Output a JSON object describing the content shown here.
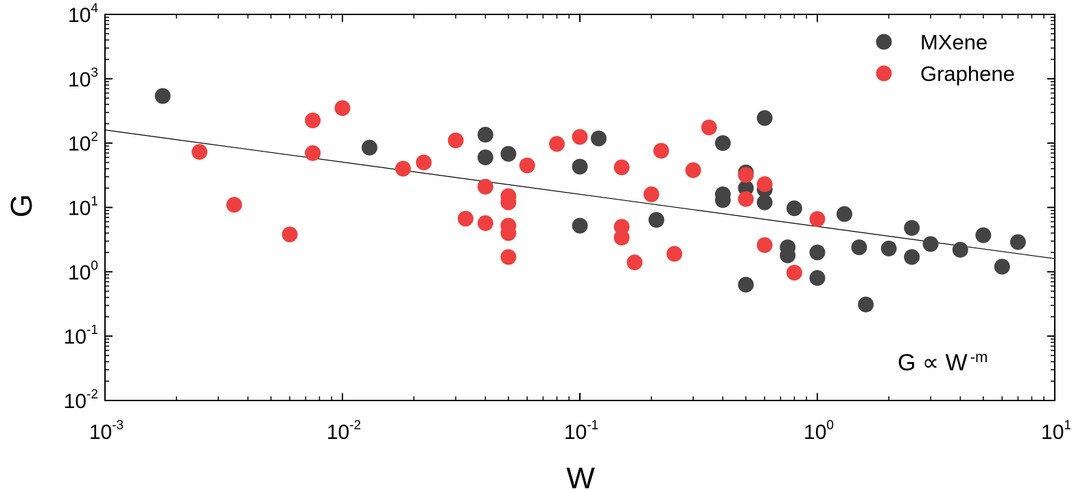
{
  "chart_data": {
    "type": "scatter",
    "xlabel": "W",
    "ylabel": "G",
    "xscale": "log",
    "yscale": "log",
    "xlim": [
      0.001,
      10
    ],
    "ylim": [
      0.01,
      10000
    ],
    "xticks": [
      {
        "value": 0.001,
        "base": "10",
        "exp": "-3"
      },
      {
        "value": 0.01,
        "base": "10",
        "exp": "-2"
      },
      {
        "value": 0.1,
        "base": "10",
        "exp": "-1"
      },
      {
        "value": 1,
        "base": "10",
        "exp": "0"
      },
      {
        "value": 10,
        "base": "10",
        "exp": "1"
      }
    ],
    "yticks": [
      {
        "value": 0.01,
        "base": "10",
        "exp": "-2"
      },
      {
        "value": 0.1,
        "base": "10",
        "exp": "-1"
      },
      {
        "value": 1,
        "base": "10",
        "exp": "0"
      },
      {
        "value": 10,
        "base": "10",
        "exp": "1"
      },
      {
        "value": 100,
        "base": "10",
        "exp": "2"
      },
      {
        "value": 1000,
        "base": "10",
        "exp": "3"
      },
      {
        "value": 10000,
        "base": "10",
        "exp": "4"
      }
    ],
    "legend_position": "top-right",
    "grid": false,
    "series": [
      {
        "name": "MXene",
        "color": "#444444",
        "points": [
          [
            0.00175,
            540
          ],
          [
            0.013,
            85
          ],
          [
            0.04,
            135
          ],
          [
            0.04,
            60
          ],
          [
            0.05,
            68
          ],
          [
            0.1,
            43
          ],
          [
            0.1,
            5.2
          ],
          [
            0.12,
            118
          ],
          [
            0.21,
            6.4
          ],
          [
            0.4,
            100
          ],
          [
            0.4,
            16
          ],
          [
            0.4,
            13
          ],
          [
            0.5,
            35
          ],
          [
            0.5,
            20
          ],
          [
            0.5,
            0.63
          ],
          [
            0.6,
            245
          ],
          [
            0.6,
            19
          ],
          [
            0.6,
            12
          ],
          [
            0.75,
            2.4
          ],
          [
            0.75,
            1.8
          ],
          [
            0.8,
            9.7
          ],
          [
            1.0,
            2.0
          ],
          [
            1.0,
            0.8
          ],
          [
            1.3,
            7.9
          ],
          [
            1.5,
            2.4
          ],
          [
            1.6,
            0.31
          ],
          [
            2.0,
            2.3
          ],
          [
            2.5,
            4.8
          ],
          [
            2.5,
            1.7
          ],
          [
            3.0,
            2.7
          ],
          [
            4.0,
            2.2
          ],
          [
            5.0,
            3.7
          ],
          [
            6.0,
            1.2
          ],
          [
            7.0,
            2.9
          ]
        ]
      },
      {
        "name": "Graphene",
        "color": "#ee4040",
        "points": [
          [
            0.0025,
            73
          ],
          [
            0.0035,
            11
          ],
          [
            0.006,
            3.8
          ],
          [
            0.0075,
            225
          ],
          [
            0.0075,
            70
          ],
          [
            0.01,
            350
          ],
          [
            0.018,
            40
          ],
          [
            0.022,
            50
          ],
          [
            0.03,
            110
          ],
          [
            0.033,
            6.7
          ],
          [
            0.04,
            21
          ],
          [
            0.04,
            5.7
          ],
          [
            0.05,
            15
          ],
          [
            0.05,
            12
          ],
          [
            0.05,
            5.2
          ],
          [
            0.05,
            4.0
          ],
          [
            0.05,
            1.7
          ],
          [
            0.06,
            45
          ],
          [
            0.08,
            97
          ],
          [
            0.1,
            125
          ],
          [
            0.15,
            42
          ],
          [
            0.15,
            5.0
          ],
          [
            0.15,
            3.4
          ],
          [
            0.17,
            1.4
          ],
          [
            0.2,
            16
          ],
          [
            0.22,
            76
          ],
          [
            0.25,
            1.9
          ],
          [
            0.3,
            38
          ],
          [
            0.35,
            175
          ],
          [
            0.5,
            32
          ],
          [
            0.5,
            13.5
          ],
          [
            0.6,
            23
          ],
          [
            0.6,
            2.6
          ],
          [
            0.8,
            0.97
          ],
          [
            1.0,
            6.6
          ]
        ]
      }
    ],
    "fit_line": {
      "x": [
        0.001,
        10
      ],
      "y": [
        160,
        1.6
      ],
      "color": "#000000"
    },
    "annotation": {
      "base": "G ∝ W",
      "sup": "-m"
    }
  }
}
